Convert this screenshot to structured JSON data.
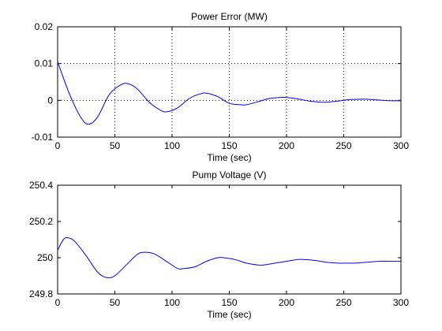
{
  "chart_data": [
    {
      "type": "line",
      "title": "Power Error (MW)",
      "xlabel": "Time (sec)",
      "ylabel": "",
      "xlim": [
        0,
        300
      ],
      "ylim": [
        -0.01,
        0.02
      ],
      "xticks": [
        0,
        50,
        100,
        150,
        200,
        250,
        300
      ],
      "xtick_labels": [
        "0",
        "50",
        "100",
        "150",
        "200",
        "250",
        "300"
      ],
      "yticks": [
        -0.01,
        0,
        0.01,
        0.02
      ],
      "ytick_labels": [
        "-0.01",
        "0",
        "0.01",
        "0.02"
      ],
      "grid": true,
      "line_color": "#0000ff",
      "series": [
        {
          "x": [
            0,
            10,
            20,
            27,
            35,
            45,
            55,
            62,
            70,
            80,
            90,
            96,
            105,
            115,
            125,
            131,
            140,
            150,
            160,
            165,
            175,
            185,
            195,
            200,
            210,
            220,
            230,
            235,
            245,
            255,
            265,
            270,
            280,
            290,
            300
          ],
          "y": [
            0.0105,
            0.002,
            -0.0045,
            -0.0065,
            -0.0045,
            0.0015,
            0.0042,
            0.0045,
            0.003,
            -0.0005,
            -0.0027,
            -0.0031,
            -0.002,
            0.0005,
            0.0018,
            0.0019,
            0.001,
            -0.0008,
            -0.0012,
            -0.0012,
            -0.0004,
            0.0005,
            0.0008,
            0.0008,
            0.0004,
            -0.0002,
            -0.0005,
            -0.0005,
            -0.0002,
            0.0002,
            0.0003,
            0.0003,
            0.0001,
            -0.0001,
            -0.0001
          ]
        }
      ]
    },
    {
      "type": "line",
      "title": "Pump Voltage (V)",
      "xlabel": "Time (sec)",
      "ylabel": "",
      "xlim": [
        0,
        300
      ],
      "ylim": [
        249.8,
        250.4
      ],
      "xticks": [
        0,
        50,
        100,
        150,
        200,
        250,
        300
      ],
      "xtick_labels": [
        "0",
        "50",
        "100",
        "150",
        "200",
        "250",
        "300"
      ],
      "yticks": [
        249.8,
        250,
        250.2,
        250.4
      ],
      "ytick_labels": [
        "249.8",
        "250",
        "250.2",
        "250.4"
      ],
      "grid": false,
      "line_color": "#0000ff",
      "series": [
        {
          "x": [
            0,
            5,
            9,
            15,
            25,
            35,
            43,
            50,
            60,
            70,
            77,
            85,
            95,
            105,
            110,
            120,
            130,
            140,
            145,
            155,
            165,
            175,
            180,
            190,
            200,
            210,
            215,
            225,
            235,
            245,
            250,
            260,
            270,
            280,
            290,
            300
          ],
          "y": [
            250.04,
            250.1,
            250.11,
            250.09,
            250.01,
            249.92,
            249.89,
            249.9,
            249.96,
            250.02,
            250.03,
            250.02,
            249.98,
            249.94,
            249.94,
            249.95,
            249.98,
            250.0,
            250.0,
            249.99,
            249.97,
            249.96,
            249.96,
            249.97,
            249.98,
            249.99,
            249.99,
            249.985,
            249.975,
            249.97,
            249.97,
            249.97,
            249.975,
            249.98,
            249.98,
            249.98
          ]
        }
      ]
    }
  ]
}
